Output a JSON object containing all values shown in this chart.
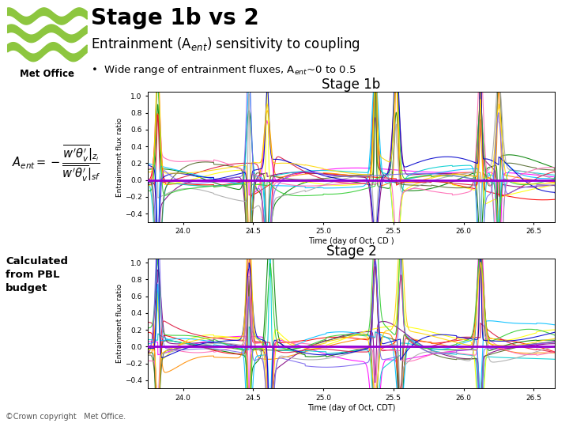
{
  "title_main": "Stage 1b vs 2",
  "title_sub": "Entrainment (A$_{ent}$) sensitivity to coupling",
  "bullet": "Wide range of entrainment fluxes, A$_{ent}$~0 to 0.5",
  "stage1b_title": "Stage 1b",
  "stage2_title": "Stage 2",
  "ylabel1": "Entrainment flux ratio",
  "ylabel2": "Entrainment flux ratio",
  "xlabel1": "Time (day of Oct, CD )",
  "xlabel2": "Time (day of Oct, CDT)",
  "xlim": [
    23.75,
    26.65
  ],
  "ylim": [
    -0.5,
    1.05
  ],
  "xticks": [
    24.0,
    24.5,
    25.0,
    25.5,
    26.0,
    26.5
  ],
  "yticks": [
    -0.4,
    -0.2,
    0.0,
    0.2,
    0.4,
    0.6,
    0.8,
    1.0
  ],
  "hline_color": "#9400D3",
  "bg_color": "#ffffff",
  "calc_text": "Calculated\nfrom PBL\nbudget",
  "copyright_text": "©Crown copyright   Met Office.",
  "line_colors": [
    "#ff00ff",
    "#008000",
    "#ff0000",
    "#ff8c00",
    "#800080",
    "#00ced1",
    "#ffff00",
    "#dc143c",
    "#556b2f",
    "#00bfff",
    "#aaaaaa",
    "#ff69b4",
    "#32cd32",
    "#0000cd",
    "#ffd700",
    "#7b68ee"
  ],
  "hzero_lw": 2.0,
  "plot_lw": 0.8,
  "metoffice_green": "#8dc63f",
  "spike_positions": [
    23.82,
    24.47,
    24.6,
    25.37,
    25.52,
    26.12,
    26.25
  ],
  "spike_positions2": [
    23.82,
    24.47,
    24.62,
    25.37,
    25.55,
    26.12
  ],
  "formula_fontsize": 9
}
